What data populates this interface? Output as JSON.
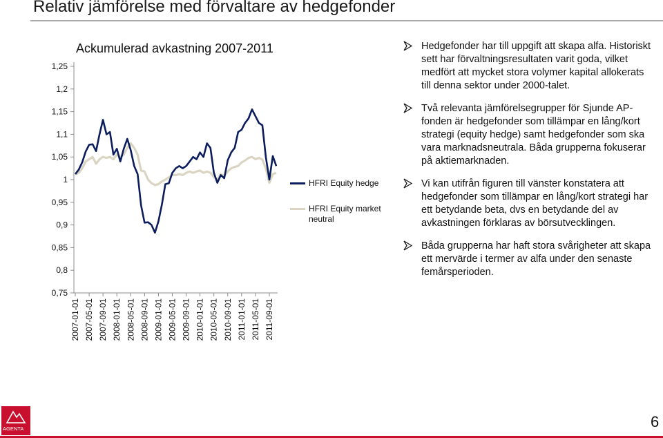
{
  "slide": {
    "title": "Relativ jämförelse med förvaltare av hedgefonder",
    "page_number": "6",
    "logo_text": "AGENTA"
  },
  "chart_data": {
    "type": "line",
    "title": "Ackumulerad avkastning 2007-2011",
    "ylim": [
      0.75,
      1.25
    ],
    "yticks": [
      "1,25",
      "1,2",
      "1,15",
      "1,1",
      "1,05",
      "1",
      "0,95",
      "0,9",
      "0,85",
      "0,8",
      "0,75"
    ],
    "ytick_values": [
      1.25,
      1.2,
      1.15,
      1.1,
      1.05,
      1.0,
      0.95,
      0.9,
      0.85,
      0.8,
      0.75
    ],
    "xticks": [
      "2007-01-01",
      "2007-05-01",
      "2007-09-01",
      "2008-01-01",
      "2008-05-01",
      "2008-09-01",
      "2009-01-01",
      "2009-05-01",
      "2009-09-01",
      "2010-01-01",
      "2010-05-01",
      "2010-09-01",
      "2011-01-01",
      "2011-05-01",
      "2011-09-01"
    ],
    "x_months": [
      "2007-01",
      "2007-02",
      "2007-03",
      "2007-04",
      "2007-05",
      "2007-06",
      "2007-07",
      "2007-08",
      "2007-09",
      "2007-10",
      "2007-11",
      "2007-12",
      "2008-01",
      "2008-02",
      "2008-03",
      "2008-04",
      "2008-05",
      "2008-06",
      "2008-07",
      "2008-08",
      "2008-09",
      "2008-10",
      "2008-11",
      "2008-12",
      "2009-01",
      "2009-02",
      "2009-03",
      "2009-04",
      "2009-05",
      "2009-06",
      "2009-07",
      "2009-08",
      "2009-09",
      "2009-10",
      "2009-11",
      "2009-12",
      "2010-01",
      "2010-02",
      "2010-03",
      "2010-04",
      "2010-05",
      "2010-06",
      "2010-07",
      "2010-08",
      "2010-09",
      "2010-10",
      "2010-11",
      "2010-12",
      "2011-01",
      "2011-02",
      "2011-03",
      "2011-04",
      "2011-05",
      "2011-06",
      "2011-07",
      "2011-08",
      "2011-09",
      "2011-10",
      "2011-11"
    ],
    "series": [
      {
        "name": "HFRI Equity hedge",
        "color": "#0b1d5c",
        "values": [
          1.012,
          1.022,
          1.038,
          1.062,
          1.077,
          1.078,
          1.063,
          1.1,
          1.132,
          1.1,
          1.105,
          1.055,
          1.068,
          1.04,
          1.068,
          1.09,
          1.065,
          1.03,
          1.012,
          0.943,
          0.905,
          0.906,
          0.9,
          0.883,
          0.908,
          0.945,
          0.99,
          0.992,
          1.015,
          1.025,
          1.03,
          1.025,
          1.03,
          1.04,
          1.05,
          1.045,
          1.06,
          1.05,
          1.08,
          1.07,
          1.015,
          0.993,
          1.01,
          1.003,
          1.043,
          1.06,
          1.07,
          1.105,
          1.11,
          1.125,
          1.135,
          1.155,
          1.14,
          1.125,
          1.12,
          1.05,
          1.0,
          1.052,
          1.03
        ]
      },
      {
        "name": "HFRI Equity market neutral",
        "color": "#d9d5c2",
        "values": [
          1.012,
          1.015,
          1.025,
          1.04,
          1.045,
          1.05,
          1.035,
          1.045,
          1.05,
          1.048,
          1.05,
          1.045,
          1.055,
          1.05,
          1.055,
          1.07,
          1.08,
          1.07,
          1.055,
          1.02,
          1.018,
          1.0,
          0.992,
          0.988,
          0.99,
          0.996,
          1.0,
          1.005,
          1.01,
          1.01,
          1.012,
          1.01,
          1.015,
          1.018,
          1.015,
          1.018,
          1.02,
          1.015,
          1.018,
          1.015,
          1.005,
          1.0,
          1.012,
          1.008,
          1.018,
          1.025,
          1.028,
          1.03,
          1.038,
          1.042,
          1.048,
          1.05,
          1.045,
          1.048,
          1.044,
          1.025,
          0.993,
          1.012,
          1.015
        ]
      }
    ]
  },
  "legend": {
    "items": [
      {
        "label_line1": "HFRI Equity hedge",
        "label_line2": ""
      },
      {
        "label_line1": "HFRI Equity market",
        "label_line2": "neutral"
      }
    ]
  },
  "bullets": [
    "Hedgefonder har till uppgift att skapa alfa. Historiskt sett har förvaltningsresultaten varit goda, vilket medfört att mycket stora volymer kapital allokerats till denna sektor under 2000-talet.",
    "Två relevanta jämförelsegrupper för Sjunde AP-fonden är hedgefonder som tillämpar en lång/kort strategi (equity hedge) samt hedgefonder som ska vara marknadsneutrala. Båda grupperna fokuserar på aktiemarknaden.",
    "Vi kan utifrån figuren till vänster konstatera att hedgefonder som tillämpar en lång/kort strategi har ett betydande beta, dvs en betydande del av avkastningen förklaras av börsutvecklingen.",
    "Båda grupperna har haft stora svårigheter att skapa ett mervärde i termer av alfa under den senaste femårsperioden."
  ],
  "colors": {
    "accent": "#c8102e",
    "axis": "#8c8c8c",
    "bullet_arrow": "#1a1a1a"
  }
}
